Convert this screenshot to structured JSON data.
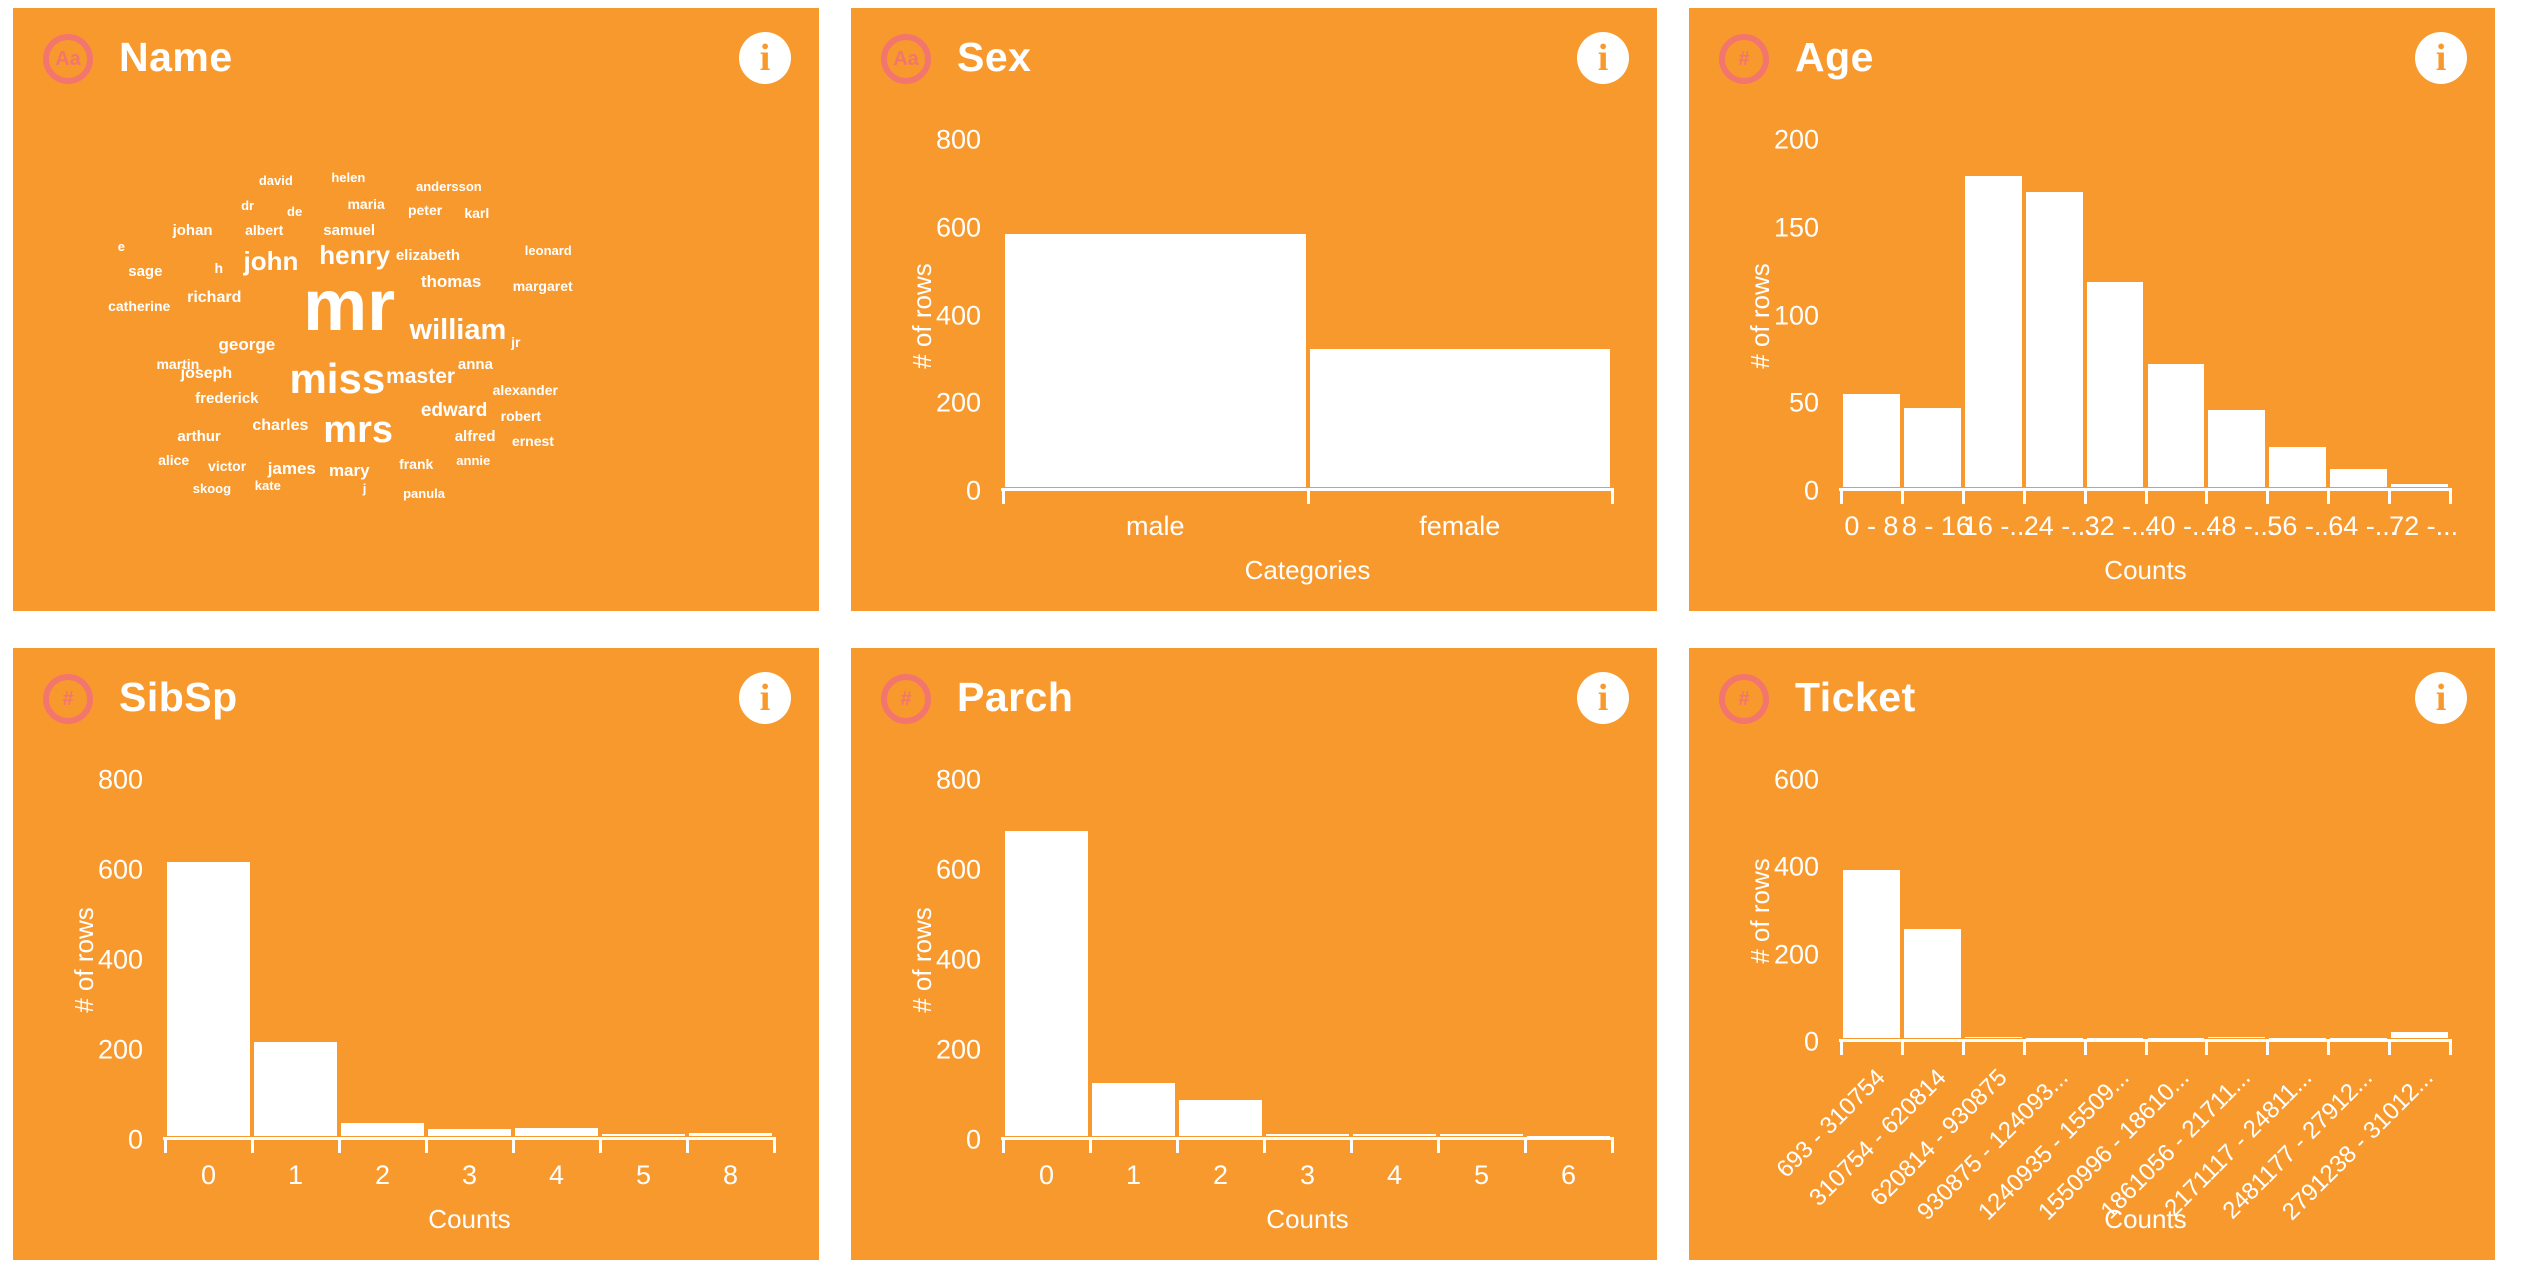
{
  "ui": {
    "info_glyph": "i",
    "colors": {
      "card_background": "#F8992D",
      "type_badge": "#F2766D",
      "text": "#FFFFFF",
      "info_circle_bg": "#FFFFFF",
      "info_circle_fg": "#F8992D"
    }
  },
  "cards": [
    {
      "title": "Name",
      "type_glyph": "Aa"
    },
    {
      "title": "Sex",
      "type_glyph": "Aa"
    },
    {
      "title": "Age",
      "type_glyph": "#"
    },
    {
      "title": "SibSp",
      "type_glyph": "#"
    },
    {
      "title": "Parch",
      "type_glyph": "#"
    },
    {
      "title": "Ticket",
      "type_glyph": "#"
    }
  ],
  "chart_data": [
    {
      "card": "Name",
      "type": "wordcloud",
      "words": [
        {
          "t": "david",
          "x": 30.5,
          "y": 27.5,
          "s": 13
        },
        {
          "t": "helen",
          "x": 39.5,
          "y": 27.0,
          "s": 13
        },
        {
          "t": "andersson",
          "x": 50.0,
          "y": 28.6,
          "s": 13
        },
        {
          "t": "dr",
          "x": 28.3,
          "y": 31.6,
          "s": 13
        },
        {
          "t": "de",
          "x": 34.0,
          "y": 32.6,
          "s": 13
        },
        {
          "t": "maria",
          "x": 41.5,
          "y": 31.4,
          "s": 14
        },
        {
          "t": "peter",
          "x": 49.0,
          "y": 32.4,
          "s": 14
        },
        {
          "t": "karl",
          "x": 56.0,
          "y": 32.8,
          "s": 14
        },
        {
          "t": "johan",
          "x": 19.8,
          "y": 35.6,
          "s": 15
        },
        {
          "t": "albert",
          "x": 28.8,
          "y": 35.7,
          "s": 14
        },
        {
          "t": "samuel",
          "x": 38.5,
          "y": 35.6,
          "s": 15
        },
        {
          "t": "e",
          "x": 13.0,
          "y": 38.5,
          "s": 13
        },
        {
          "t": "elizabeth",
          "x": 47.5,
          "y": 39.8,
          "s": 15
        },
        {
          "t": "leonard",
          "x": 63.5,
          "y": 39.2,
          "s": 13
        },
        {
          "t": "sage",
          "x": 14.3,
          "y": 42.5,
          "s": 15
        },
        {
          "t": "h",
          "x": 25.0,
          "y": 41.9,
          "s": 14
        },
        {
          "t": "john",
          "x": 28.6,
          "y": 39.8,
          "s": 26
        },
        {
          "t": "henry",
          "x": 38.0,
          "y": 38.8,
          "s": 26
        },
        {
          "t": "thomas",
          "x": 50.6,
          "y": 44.0,
          "s": 17
        },
        {
          "t": "margaret",
          "x": 62.0,
          "y": 44.9,
          "s": 14
        },
        {
          "t": "catherine",
          "x": 11.8,
          "y": 48.3,
          "s": 14
        },
        {
          "t": "richard",
          "x": 21.6,
          "y": 46.7,
          "s": 16
        },
        {
          "t": "mr",
          "x": 36.0,
          "y": 43.5,
          "s": 72
        },
        {
          "t": "william",
          "x": 49.2,
          "y": 51.0,
          "s": 29
        },
        {
          "t": "jr",
          "x": 61.8,
          "y": 54.2,
          "s": 14
        },
        {
          "t": "george",
          "x": 25.5,
          "y": 54.4,
          "s": 17
        },
        {
          "t": "martin",
          "x": 17.8,
          "y": 57.9,
          "s": 14
        },
        {
          "t": "joseph",
          "x": 20.8,
          "y": 59.3,
          "s": 16
        },
        {
          "t": "miss",
          "x": 34.3,
          "y": 58.0,
          "s": 42
        },
        {
          "t": "master",
          "x": 46.3,
          "y": 59.4,
          "s": 21
        },
        {
          "t": "anna",
          "x": 55.2,
          "y": 57.8,
          "s": 15
        },
        {
          "t": "frederick",
          "x": 22.6,
          "y": 63.5,
          "s": 15
        },
        {
          "t": "alexander",
          "x": 59.5,
          "y": 62.2,
          "s": 14
        },
        {
          "t": "arthur",
          "x": 20.4,
          "y": 69.8,
          "s": 15
        },
        {
          "t": "charles",
          "x": 29.7,
          "y": 68.0,
          "s": 16
        },
        {
          "t": "mrs",
          "x": 38.5,
          "y": 66.8,
          "s": 38
        },
        {
          "t": "edward",
          "x": 50.6,
          "y": 65.2,
          "s": 19
        },
        {
          "t": "robert",
          "x": 60.5,
          "y": 66.5,
          "s": 14
        },
        {
          "t": "alfred",
          "x": 54.8,
          "y": 69.9,
          "s": 15
        },
        {
          "t": "ernest",
          "x": 61.9,
          "y": 70.7,
          "s": 14
        },
        {
          "t": "alice",
          "x": 18.0,
          "y": 73.8,
          "s": 14
        },
        {
          "t": "victor",
          "x": 24.2,
          "y": 74.8,
          "s": 14
        },
        {
          "t": "james",
          "x": 31.6,
          "y": 75.0,
          "s": 17
        },
        {
          "t": "mary",
          "x": 39.2,
          "y": 75.3,
          "s": 17
        },
        {
          "t": "frank",
          "x": 47.9,
          "y": 74.5,
          "s": 14
        },
        {
          "t": "annie",
          "x": 55.0,
          "y": 73.9,
          "s": 13
        },
        {
          "t": "skoog",
          "x": 22.3,
          "y": 78.6,
          "s": 13
        },
        {
          "t": "kate",
          "x": 30.0,
          "y": 78.1,
          "s": 13
        },
        {
          "t": "j",
          "x": 43.4,
          "y": 78.6,
          "s": 13
        },
        {
          "t": "panula",
          "x": 48.4,
          "y": 79.4,
          "s": 13
        }
      ]
    },
    {
      "card": "Sex",
      "type": "bar",
      "categories": [
        "male",
        "female"
      ],
      "values": [
        577,
        314
      ],
      "xlabel": "Categories",
      "ylabel": "# of rows",
      "ylim": [
        0,
        800
      ],
      "yticks": [
        800,
        600,
        400,
        200,
        0
      ],
      "rotated_labels": false
    },
    {
      "card": "Age",
      "type": "histogram",
      "categories": [
        "0 - 8",
        "8 - 16",
        "16 -...",
        "24 -...",
        "32 -...",
        "40 -...",
        "48 -...",
        "56 -...",
        "64 -...",
        "72 -..."
      ],
      "values": [
        53,
        45,
        177,
        168,
        117,
        70,
        44,
        23,
        10,
        2
      ],
      "xlabel": "Counts",
      "ylabel": "# of rows",
      "ylim": [
        0,
        200
      ],
      "yticks": [
        200,
        150,
        100,
        50,
        0
      ],
      "rotated_labels": false
    },
    {
      "card": "SibSp",
      "type": "histogram",
      "categories": [
        "0",
        "1",
        "2",
        "3",
        "4",
        "5",
        "8"
      ],
      "values": [
        608,
        209,
        28,
        16,
        18,
        5,
        7
      ],
      "xlabel": "Counts",
      "ylabel": "# of rows",
      "ylim": [
        0,
        800
      ],
      "yticks": [
        800,
        600,
        400,
        200,
        0
      ],
      "rotated_labels": false
    },
    {
      "card": "Parch",
      "type": "histogram",
      "categories": [
        "0",
        "1",
        "2",
        "3",
        "4",
        "5",
        "6"
      ],
      "values": [
        678,
        118,
        80,
        5,
        4,
        5,
        1
      ],
      "xlabel": "Counts",
      "ylabel": "# of rows",
      "ylim": [
        0,
        800
      ],
      "yticks": [
        800,
        600,
        400,
        200,
        0
      ],
      "rotated_labels": false
    },
    {
      "card": "Ticket",
      "type": "histogram",
      "categories": [
        "693 - 310754",
        "310754 - 620814",
        "620814 - 930875",
        "930875 - 124093...",
        "1240935 - 15509...",
        "1550996 - 18610...",
        "1861056 - 21711...",
        "2171117 - 24811...",
        "2481177 - 27912...",
        "2791238 - 31012..."
      ],
      "values": [
        385,
        250,
        2,
        1,
        1,
        1,
        2,
        1,
        1,
        13
      ],
      "xlabel": "Counts",
      "ylabel": "# of rows",
      "ylim": [
        0,
        600
      ],
      "yticks": [
        600,
        400,
        200,
        0
      ],
      "rotated_labels": true
    }
  ]
}
